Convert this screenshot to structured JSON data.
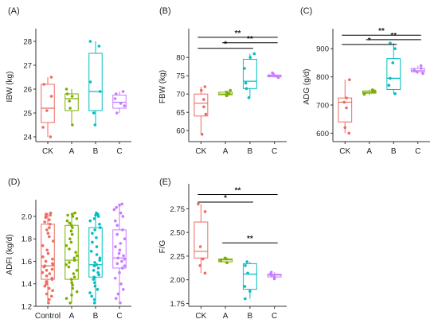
{
  "colors": {
    "CK": "#ee6b63",
    "Control": "#ee6b63",
    "A": "#7cae00",
    "B": "#00bec4",
    "C": "#c77cff",
    "axis": "#333333"
  },
  "chart_data": [
    {
      "type": "box",
      "panel": "(A)",
      "ylabel": "IBW (kg)",
      "xlabel": "",
      "categories": [
        "CK",
        "A",
        "B",
        "C"
      ],
      "ylim": [
        23.8,
        28.4
      ],
      "yticks": [
        24,
        25,
        26,
        27,
        28
      ],
      "boxes": [
        {
          "min": 24.0,
          "q1": 24.6,
          "median": 25.2,
          "q3": 26.2,
          "max": 26.5
        },
        {
          "min": 24.5,
          "q1": 25.1,
          "median": 25.6,
          "q3": 25.8,
          "max": 26.0
        },
        {
          "min": 24.5,
          "q1": 25.1,
          "median": 25.9,
          "q3": 27.5,
          "max": 28.0
        },
        {
          "min": 25.0,
          "q1": 25.2,
          "median": 25.45,
          "q3": 25.75,
          "max": 25.9
        }
      ],
      "points": [
        [
          24.0,
          24.4,
          25.1,
          25.7,
          26.2,
          26.5
        ],
        [
          24.5,
          25.2,
          25.5,
          25.7,
          25.8,
          26.0
        ],
        [
          24.5,
          25.0,
          25.9,
          26.3,
          27.8,
          28.0
        ],
        [
          25.0,
          25.3,
          25.4,
          25.6,
          25.8,
          25.9
        ]
      ],
      "significance": []
    },
    {
      "type": "box",
      "panel": "(B)",
      "ylabel": "FBW (kg)",
      "xlabel": "",
      "categories": [
        "CK",
        "A",
        "B",
        "C"
      ],
      "ylim": [
        57,
        87
      ],
      "yticks": [
        60,
        65,
        70,
        75,
        80
      ],
      "boxes": [
        {
          "min": 59.0,
          "q1": 64.0,
          "median": 67.5,
          "q3": 70.0,
          "max": 72.0
        },
        {
          "min": 69.5,
          "q1": 69.8,
          "median": 70.0,
          "q3": 70.5,
          "max": 71.0
        },
        {
          "min": 69.0,
          "q1": 71.5,
          "median": 73.5,
          "q3": 79.5,
          "max": 81.0
        },
        {
          "min": 74.5,
          "q1": 74.7,
          "median": 75.0,
          "q3": 75.2,
          "max": 75.8
        }
      ],
      "points": [
        [
          59.0,
          64.5,
          66.5,
          68.5,
          71.0,
          72.0
        ],
        [
          69.5,
          70.0,
          70.2,
          70.5,
          71.0
        ],
        [
          69.0,
          71.5,
          73.0,
          77.0,
          80.0,
          81.0
        ],
        [
          74.5,
          74.8,
          75.0,
          75.2,
          75.8
        ]
      ],
      "significance": [
        {
          "from": "CK",
          "to": "B",
          "label": "*",
          "y": 82.5
        },
        {
          "from": "A",
          "to": "C",
          "label": "**",
          "y": 84.0
        },
        {
          "from": "CK",
          "to": "C",
          "label": "**",
          "y": 85.5
        }
      ]
    },
    {
      "type": "box",
      "panel": "(C)",
      "ylabel": "ADG (g/d)",
      "xlabel": "",
      "categories": [
        "CK",
        "A",
        "B",
        "C"
      ],
      "ylim": [
        570,
        960
      ],
      "yticks": [
        600,
        700,
        800,
        900
      ],
      "boxes": [
        {
          "min": 600,
          "q1": 640,
          "median": 710,
          "q3": 725,
          "max": 790
        },
        {
          "min": 735,
          "q1": 742,
          "median": 745,
          "q3": 750,
          "max": 755
        },
        {
          "min": 740,
          "q1": 755,
          "median": 795,
          "q3": 865,
          "max": 920
        },
        {
          "min": 810,
          "q1": 818,
          "median": 822,
          "q3": 830,
          "max": 840
        }
      ],
      "points": [
        [
          600,
          620,
          690,
          710,
          725,
          790
        ],
        [
          738,
          742,
          746,
          750,
          754
        ],
        [
          740,
          770,
          795,
          850,
          900,
          920
        ],
        [
          812,
          818,
          824,
          830,
          840
        ]
      ],
      "significance": [
        {
          "from": "CK",
          "to": "B",
          "label": "*",
          "y": 915
        },
        {
          "from": "A",
          "to": "C",
          "label": "**",
          "y": 932
        },
        {
          "from": "CK",
          "to": "C",
          "label": "**",
          "y": 948
        }
      ]
    },
    {
      "type": "box",
      "panel": "(D)",
      "ylabel": "ADFI (kg/d)",
      "xlabel": "",
      "categories": [
        "Control",
        "A",
        "B",
        "C"
      ],
      "ylim": [
        1.2,
        2.12
      ],
      "yticks": [
        1.2,
        1.4,
        1.6,
        1.8,
        2.0
      ],
      "boxes": [
        {
          "min": 1.23,
          "q1": 1.44,
          "median": 1.56,
          "q3": 1.93,
          "max": 2.03
        },
        {
          "min": 1.23,
          "q1": 1.44,
          "median": 1.61,
          "q3": 1.92,
          "max": 2.03
        },
        {
          "min": 1.23,
          "q1": 1.46,
          "median": 1.57,
          "q3": 1.9,
          "max": 2.03
        },
        {
          "min": 1.23,
          "q1": 1.54,
          "median": 1.63,
          "q3": 1.88,
          "max": 2.11
        }
      ],
      "points": [
        [
          1.23,
          1.26,
          1.29,
          1.31,
          1.34,
          1.36,
          1.38,
          1.4,
          1.42,
          1.44,
          1.45,
          1.47,
          1.49,
          1.5,
          1.52,
          1.53,
          1.55,
          1.56,
          1.57,
          1.58,
          1.6,
          1.62,
          1.64,
          1.67,
          1.7,
          1.74,
          1.78,
          1.82,
          1.85,
          1.88,
          1.9,
          1.93,
          1.95,
          1.97,
          1.99,
          2.0,
          2.01,
          2.02,
          2.03
        ],
        [
          1.23,
          1.27,
          1.3,
          1.33,
          1.36,
          1.39,
          1.41,
          1.44,
          1.46,
          1.49,
          1.52,
          1.55,
          1.57,
          1.59,
          1.61,
          1.63,
          1.65,
          1.68,
          1.71,
          1.74,
          1.77,
          1.8,
          1.84,
          1.87,
          1.9,
          1.92,
          1.94,
          1.96,
          1.98,
          2.0,
          2.01,
          2.02,
          2.03
        ],
        [
          1.23,
          1.26,
          1.29,
          1.32,
          1.35,
          1.38,
          1.41,
          1.44,
          1.46,
          1.48,
          1.5,
          1.52,
          1.54,
          1.56,
          1.57,
          1.59,
          1.61,
          1.63,
          1.66,
          1.69,
          1.73,
          1.77,
          1.81,
          1.85,
          1.88,
          1.9,
          1.93,
          1.96,
          1.98,
          2.0,
          2.01,
          2.02,
          2.03
        ],
        [
          1.23,
          1.27,
          1.31,
          1.35,
          1.4,
          1.45,
          1.5,
          1.54,
          1.56,
          1.58,
          1.6,
          1.62,
          1.63,
          1.65,
          1.67,
          1.7,
          1.73,
          1.76,
          1.8,
          1.84,
          1.88,
          1.92,
          1.96,
          2.0,
          2.03,
          2.06,
          2.08,
          2.1,
          2.11
        ]
      ],
      "significance": []
    },
    {
      "type": "box",
      "panel": "(E)",
      "ylabel": "F/G",
      "xlabel": "",
      "categories": [
        "CK",
        "A",
        "B",
        "C"
      ],
      "ylim": [
        1.72,
        2.98
      ],
      "yticks": [
        1.75,
        2.0,
        2.25,
        2.5,
        2.75
      ],
      "boxes": [
        {
          "min": 2.07,
          "q1": 2.23,
          "median": 2.3,
          "q3": 2.61,
          "max": 2.8
        },
        {
          "min": 2.18,
          "q1": 2.19,
          "median": 2.21,
          "q3": 2.22,
          "max": 2.23
        },
        {
          "min": 1.8,
          "q1": 1.9,
          "median": 2.06,
          "q3": 2.17,
          "max": 2.19
        },
        {
          "min": 2.01,
          "q1": 2.03,
          "median": 2.05,
          "q3": 2.06,
          "max": 2.08
        }
      ],
      "points": [
        [
          2.07,
          2.15,
          2.22,
          2.35,
          2.72,
          2.8
        ],
        [
          2.18,
          2.2,
          2.21,
          2.22,
          2.23
        ],
        [
          1.8,
          1.88,
          1.93,
          2.07,
          2.15,
          2.19
        ],
        [
          2.01,
          2.03,
          2.05,
          2.06,
          2.08
        ]
      ],
      "significance": [
        {
          "from": "CK",
          "to": "B",
          "label": "*",
          "y": 2.82
        },
        {
          "from": "CK",
          "to": "C",
          "label": "**",
          "y": 2.9
        },
        {
          "from": "A",
          "to": "C",
          "label": "**",
          "y": 2.39
        }
      ]
    }
  ]
}
